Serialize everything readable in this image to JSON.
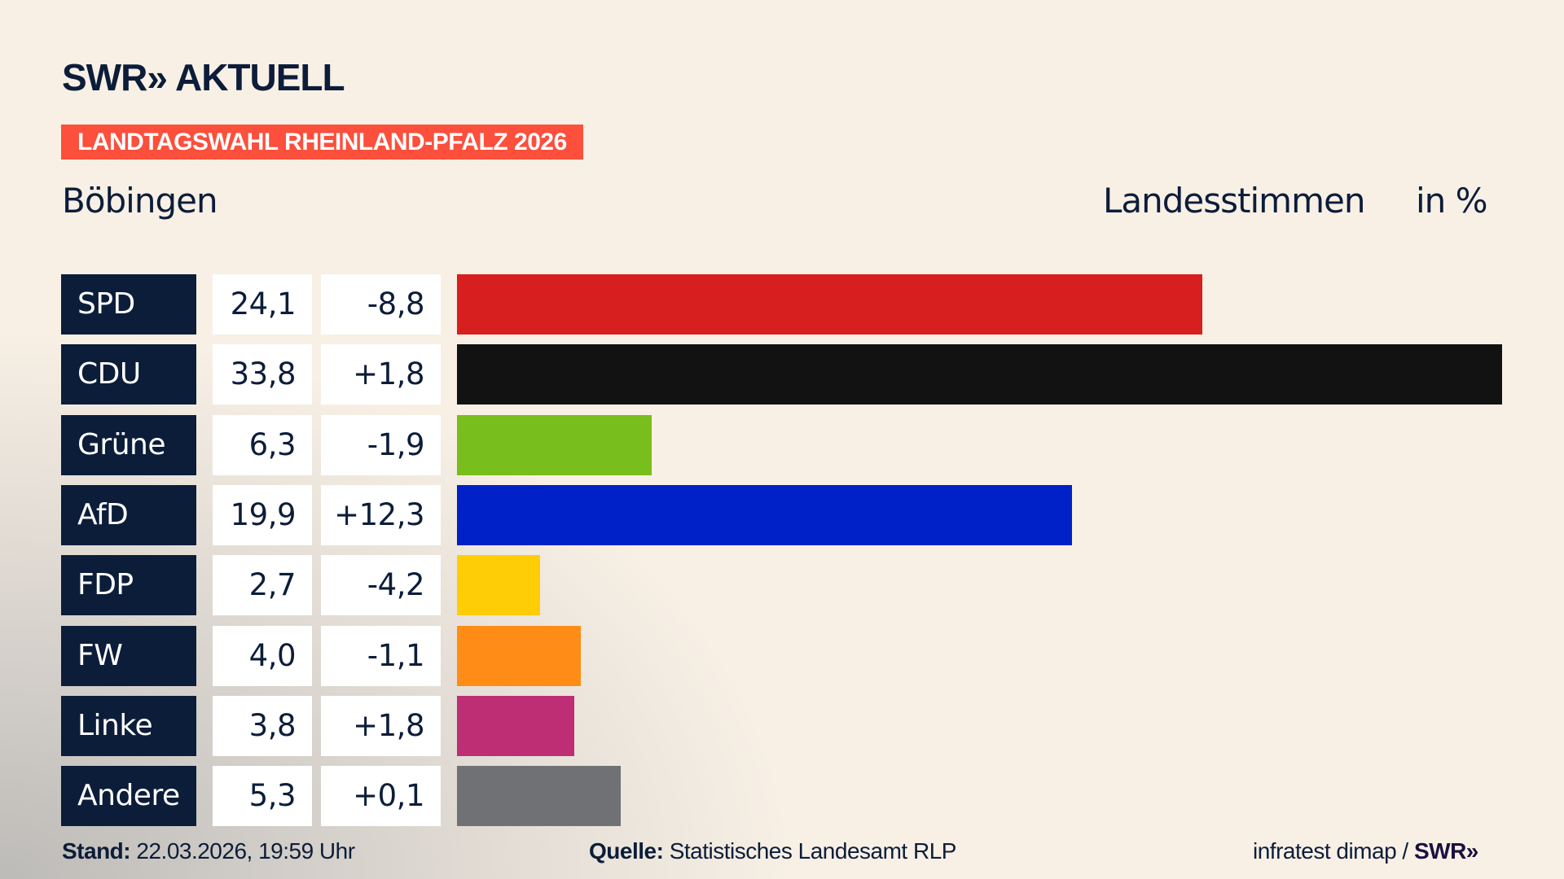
{
  "header": {
    "logo": "SWR» AKTUELL",
    "banner": "LANDTAGSWAHL RHEINLAND-PFALZ 2026",
    "banner_color": "#fc4f3c",
    "place": "Böbingen",
    "metric": "Landesstimmen",
    "unit": "in %"
  },
  "chart_data": {
    "type": "bar",
    "orientation": "horizontal",
    "title": "Böbingen",
    "subtitle": "Landesstimmen",
    "unit": "in %",
    "categories": [
      "SPD",
      "CDU",
      "Grüne",
      "AfD",
      "FDP",
      "FW",
      "Linke",
      "Andere"
    ],
    "values": [
      24.1,
      33.8,
      6.3,
      19.9,
      2.7,
      4.0,
      3.8,
      5.3
    ],
    "value_labels": [
      "24,1",
      "33,8",
      "6,3",
      "19,9",
      "2,7",
      "4,0",
      "3,8",
      "5,3"
    ],
    "diff_labels": [
      "-8,8",
      "+1,8",
      "-1,9",
      "+12,3",
      "-4,2",
      "-1,1",
      "+1,8",
      "+0,1"
    ],
    "colors": [
      "#d81f1f",
      "#121212",
      "#78be1c",
      "#0021c8",
      "#ffcd05",
      "#ff8c16",
      "#bd2e74",
      "#707174"
    ],
    "grid": false
  },
  "footer": {
    "stand_label": "Stand:",
    "stand_value": "22.03.2026, 19:59 Uhr",
    "source_label": "Quelle:",
    "source_value": "Statistisches Landesamt RLP",
    "credit": "infratest dimap /",
    "credit_logo": "SWR»"
  }
}
